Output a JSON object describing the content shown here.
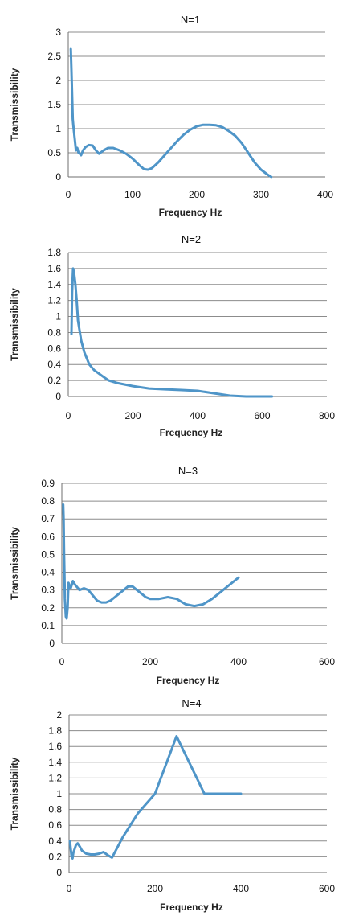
{
  "chart_data": [
    {
      "type": "line",
      "title": "N=1",
      "xlabel": "Frequency Hz",
      "ylabel": "Transmissibility",
      "xlim": [
        0,
        400
      ],
      "ylim": [
        0,
        3
      ],
      "xticks": [
        0,
        100,
        200,
        300,
        400
      ],
      "yticks": [
        0,
        0.5,
        1,
        1.5,
        2,
        2.5,
        3
      ],
      "ytick_labels": [
        "0",
        "0.5",
        "1",
        "1.5",
        "2",
        "2.5",
        "3"
      ],
      "grid": "horizontal",
      "series": [
        {
          "color": "#4f95c8",
          "x": [
            4,
            5,
            6,
            7,
            8,
            10,
            12,
            14,
            16,
            18,
            20,
            23,
            27,
            32,
            38,
            43,
            48,
            55,
            62,
            70,
            80,
            90,
            100,
            110,
            118,
            124,
            130,
            140,
            150,
            160,
            170,
            180,
            190,
            200,
            210,
            220,
            230,
            240,
            250,
            260,
            270,
            280,
            290,
            300,
            310,
            316
          ],
          "y": [
            2.65,
            2.2,
            1.7,
            1.2,
            1.05,
            0.8,
            0.55,
            0.6,
            0.5,
            0.48,
            0.45,
            0.55,
            0.62,
            0.66,
            0.65,
            0.55,
            0.48,
            0.55,
            0.6,
            0.6,
            0.55,
            0.48,
            0.38,
            0.25,
            0.16,
            0.15,
            0.18,
            0.3,
            0.45,
            0.6,
            0.75,
            0.88,
            0.98,
            1.05,
            1.08,
            1.08,
            1.07,
            1.03,
            0.95,
            0.85,
            0.7,
            0.5,
            0.3,
            0.15,
            0.05,
            0.0
          ]
        }
      ]
    },
    {
      "type": "line",
      "title": "N=2",
      "xlabel": "Frequency Hz",
      "ylabel": "Transmissibility",
      "xlim": [
        0,
        800
      ],
      "ylim": [
        0,
        1.8
      ],
      "xticks": [
        0,
        200,
        400,
        600,
        800
      ],
      "yticks": [
        0,
        0.2,
        0.4,
        0.6,
        0.8,
        1,
        1.2,
        1.4,
        1.6,
        1.8
      ],
      "ytick_labels": [
        "0",
        "0.2",
        "0.4",
        "0.6",
        "0.8",
        "1",
        "1.2",
        "1.4",
        "1.6",
        "1.8"
      ],
      "grid": "horizontal",
      "series": [
        {
          "color": "#4f95c8",
          "x": [
            10,
            12,
            15,
            18,
            22,
            26,
            30,
            40,
            50,
            65,
            80,
            100,
            125,
            150,
            200,
            250,
            300,
            350,
            400,
            450,
            500,
            550,
            600,
            630
          ],
          "y": [
            0.78,
            1.3,
            1.6,
            1.55,
            1.4,
            1.2,
            0.95,
            0.7,
            0.55,
            0.4,
            0.33,
            0.27,
            0.2,
            0.17,
            0.13,
            0.1,
            0.09,
            0.08,
            0.07,
            0.04,
            0.01,
            0.0,
            0.0,
            0.0
          ]
        }
      ]
    },
    {
      "type": "line",
      "title": "N=3",
      "xlabel": "Frequency Hz",
      "ylabel": "Transmissibility",
      "xlim": [
        0,
        600
      ],
      "ylim": [
        0,
        0.9
      ],
      "xticks": [
        0,
        200,
        400,
        600
      ],
      "yticks": [
        0,
        0.1,
        0.2,
        0.3,
        0.4,
        0.5,
        0.6,
        0.7,
        0.8,
        0.9
      ],
      "ytick_labels": [
        "0",
        "0.1",
        "0.2",
        "0.3",
        "0.4",
        "0.5",
        "0.6",
        "0.7",
        "0.8",
        "0.9"
      ],
      "grid": "horizontal",
      "series": [
        {
          "color": "#4f95c8",
          "x": [
            3,
            4,
            5,
            7,
            9,
            11,
            13,
            15,
            17,
            20,
            25,
            30,
            40,
            50,
            60,
            70,
            80,
            90,
            100,
            110,
            120,
            130,
            140,
            150,
            160,
            170,
            180,
            190,
            200,
            220,
            240,
            260,
            280,
            300,
            320,
            340,
            360,
            380,
            400
          ],
          "y": [
            0.78,
            0.7,
            0.5,
            0.25,
            0.15,
            0.14,
            0.2,
            0.34,
            0.33,
            0.31,
            0.35,
            0.33,
            0.3,
            0.31,
            0.3,
            0.27,
            0.24,
            0.23,
            0.23,
            0.24,
            0.26,
            0.28,
            0.3,
            0.32,
            0.32,
            0.3,
            0.28,
            0.26,
            0.25,
            0.25,
            0.26,
            0.25,
            0.22,
            0.21,
            0.22,
            0.25,
            0.29,
            0.33,
            0.37
          ]
        }
      ]
    },
    {
      "type": "line",
      "title": "N=4",
      "xlabel": "Frequency Hz",
      "ylabel": "Transmissibility",
      "xlim": [
        0,
        600
      ],
      "ylim": [
        0,
        2
      ],
      "xticks": [
        0,
        200,
        400,
        600
      ],
      "yticks": [
        0,
        0.2,
        0.4,
        0.6,
        0.8,
        1,
        1.2,
        1.4,
        1.6,
        1.8,
        2
      ],
      "ytick_labels": [
        "0",
        "0.2",
        "0.4",
        "0.6",
        "0.8",
        "1",
        "1.2",
        "1.4",
        "1.6",
        "1.8",
        "2"
      ],
      "grid": "horizontal",
      "series": [
        {
          "color": "#4f95c8",
          "x": [
            2,
            4,
            6,
            8,
            10,
            13,
            16,
            20,
            25,
            30,
            40,
            50,
            60,
            70,
            80,
            90,
            100,
            125,
            160,
            200,
            250,
            315,
            400
          ],
          "y": [
            0.4,
            0.3,
            0.2,
            0.18,
            0.25,
            0.3,
            0.35,
            0.37,
            0.33,
            0.28,
            0.24,
            0.23,
            0.23,
            0.24,
            0.26,
            0.22,
            0.19,
            0.45,
            0.75,
            1.0,
            1.73,
            1.0,
            1.0
          ]
        }
      ]
    }
  ]
}
